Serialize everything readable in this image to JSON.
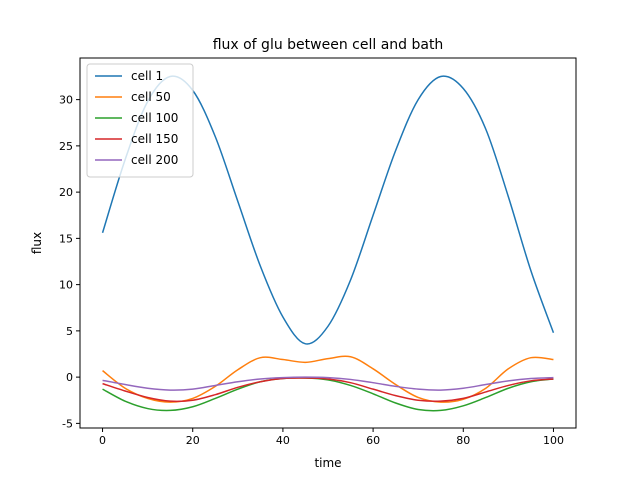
{
  "chart_data": {
    "type": "line",
    "title": "flux of glu between cell and bath",
    "xlabel": "time",
    "ylabel": "flux",
    "xlim": [
      -5,
      105
    ],
    "ylim": [
      -5.5,
      34.5
    ],
    "xticks": [
      0,
      20,
      40,
      60,
      80,
      100
    ],
    "yticks": [
      -5,
      0,
      5,
      10,
      15,
      20,
      25,
      30
    ],
    "grid": false,
    "legend_position": "top-left",
    "series": [
      {
        "name": "cell 1",
        "color": "#1f77b4",
        "x": [
          0,
          5,
          10,
          15,
          20,
          25,
          30,
          35,
          40,
          45,
          50,
          55,
          60,
          65,
          70,
          75,
          80,
          85,
          90,
          95,
          100
        ],
        "y": [
          15.6,
          23.5,
          29.8,
          32.5,
          31.0,
          26.0,
          19.0,
          12.0,
          6.5,
          3.6,
          5.5,
          10.5,
          17.5,
          24.5,
          30.0,
          32.5,
          31.2,
          26.8,
          19.5,
          11.5,
          4.8
        ]
      },
      {
        "name": "cell 50",
        "color": "#ff7f0e",
        "x": [
          0,
          5,
          10,
          15,
          20,
          25,
          30,
          35,
          40,
          45,
          50,
          55,
          60,
          65,
          70,
          75,
          80,
          85,
          90,
          95,
          100
        ],
        "y": [
          0.7,
          -1.2,
          -2.3,
          -2.7,
          -2.3,
          -1.0,
          0.8,
          2.1,
          1.9,
          1.6,
          2.0,
          2.2,
          0.9,
          -0.8,
          -2.2,
          -2.7,
          -2.4,
          -1.2,
          0.9,
          2.1,
          1.9
        ]
      },
      {
        "name": "cell 100",
        "color": "#2ca02c",
        "x": [
          0,
          5,
          10,
          15,
          20,
          25,
          30,
          35,
          40,
          45,
          50,
          55,
          60,
          65,
          70,
          75,
          80,
          85,
          90,
          95,
          100
        ],
        "y": [
          -1.3,
          -2.6,
          -3.4,
          -3.6,
          -3.2,
          -2.3,
          -1.3,
          -0.5,
          -0.15,
          -0.1,
          -0.3,
          -0.9,
          -1.8,
          -2.8,
          -3.5,
          -3.6,
          -3.1,
          -2.2,
          -1.2,
          -0.5,
          -0.2
        ]
      },
      {
        "name": "cell 150",
        "color": "#d62728",
        "x": [
          0,
          5,
          10,
          15,
          20,
          25,
          30,
          35,
          40,
          45,
          50,
          55,
          60,
          65,
          70,
          75,
          80,
          85,
          90,
          95,
          100
        ],
        "y": [
          -0.7,
          -1.5,
          -2.2,
          -2.6,
          -2.5,
          -1.9,
          -1.1,
          -0.5,
          -0.15,
          -0.1,
          -0.2,
          -0.6,
          -1.3,
          -2.0,
          -2.5,
          -2.6,
          -2.3,
          -1.6,
          -0.9,
          -0.4,
          -0.2
        ]
      },
      {
        "name": "cell 200",
        "color": "#9467bd",
        "x": [
          0,
          5,
          10,
          15,
          20,
          25,
          30,
          35,
          40,
          45,
          50,
          55,
          60,
          65,
          70,
          75,
          80,
          85,
          90,
          95,
          100
        ],
        "y": [
          -0.35,
          -0.8,
          -1.2,
          -1.4,
          -1.3,
          -0.9,
          -0.5,
          -0.2,
          -0.05,
          0.0,
          -0.05,
          -0.25,
          -0.6,
          -1.0,
          -1.3,
          -1.4,
          -1.2,
          -0.8,
          -0.4,
          -0.15,
          -0.05
        ]
      }
    ]
  }
}
